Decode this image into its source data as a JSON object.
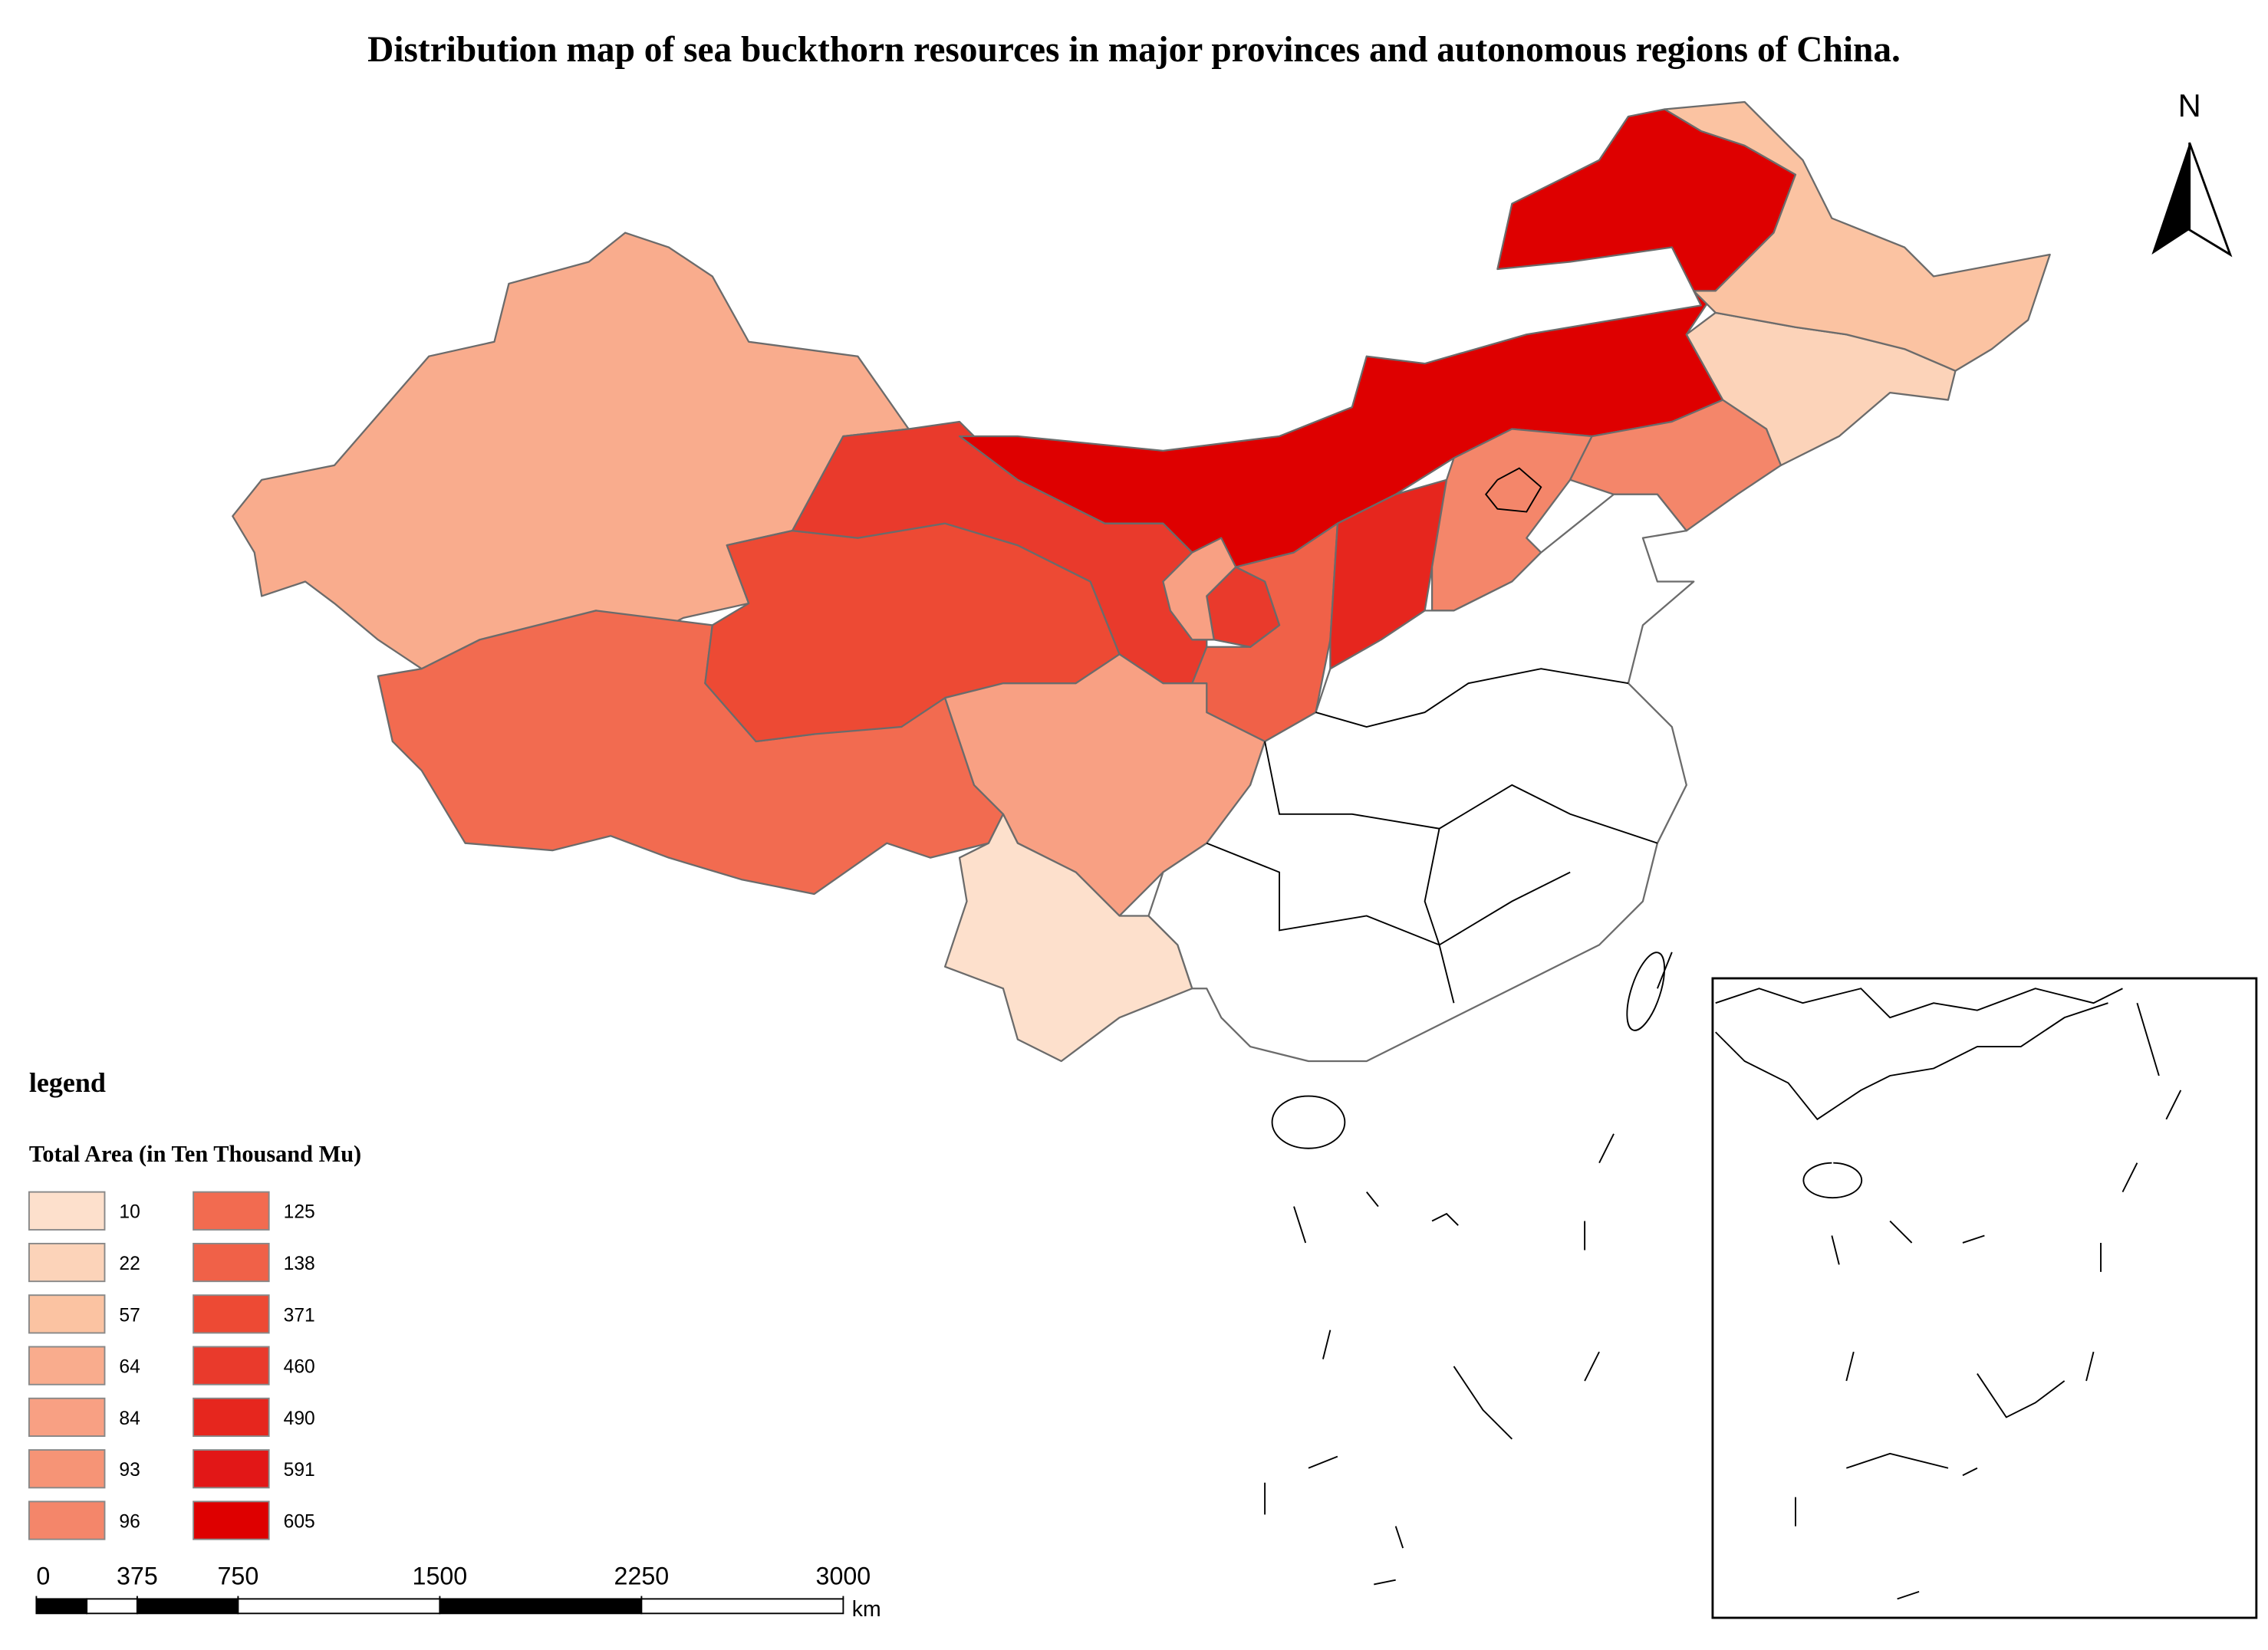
{
  "title": "Distribution map of sea buckthorn resources in major provinces and autonomous regions of China.",
  "north": "N",
  "legend": {
    "heading": "legend",
    "subtitle": "Total Area (in Ten Thousand Mu)",
    "items": [
      {
        "value": 10,
        "color": "#fde0cc"
      },
      {
        "value": 22,
        "color": "#fcd3b9"
      },
      {
        "value": 57,
        "color": "#fbc3a2"
      },
      {
        "value": 64,
        "color": "#f9ac8d"
      },
      {
        "value": 84,
        "color": "#f8a083"
      },
      {
        "value": 93,
        "color": "#f69476"
      },
      {
        "value": 96,
        "color": "#f4866a"
      },
      {
        "value": 125,
        "color": "#f26b50"
      },
      {
        "value": 138,
        "color": "#f06148"
      },
      {
        "value": 371,
        "color": "#ed4a34"
      },
      {
        "value": 460,
        "color": "#e93a2c"
      },
      {
        "value": 490,
        "color": "#e6261e"
      },
      {
        "value": 591,
        "color": "#e21717"
      },
      {
        "value": 605,
        "color": "#de0000"
      }
    ]
  },
  "scalebar": {
    "ticks": [
      0,
      375,
      750,
      1500,
      2250,
      3000
    ],
    "unit": "km"
  }
}
